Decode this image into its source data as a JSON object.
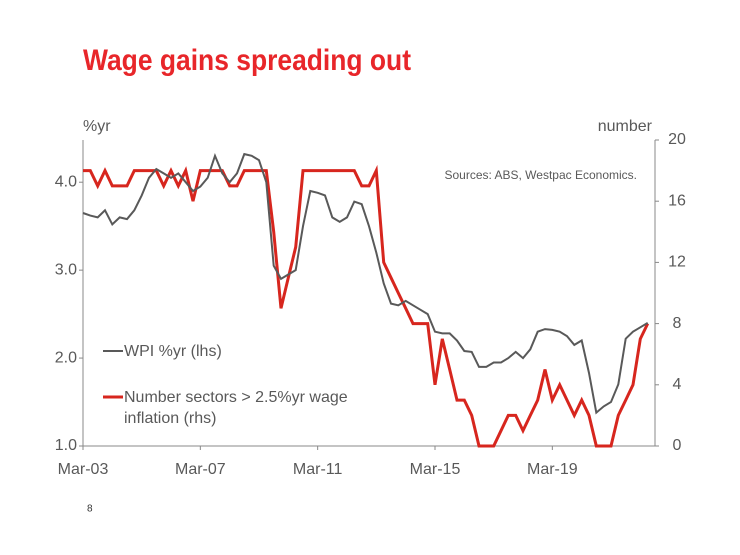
{
  "chart_data": {
    "type": "line",
    "title": "Wage gains spreading out",
    "y_label": "%yr",
    "y2_label": "number",
    "annotation": "Sources: ABS, Westpac Economics.",
    "page_number": "8",
    "categories": [
      "Mar-03",
      null,
      null,
      null,
      null,
      null,
      null,
      null,
      null,
      null,
      null,
      null,
      null,
      null,
      null,
      null,
      "Mar-07",
      null,
      null,
      null,
      null,
      null,
      null,
      null,
      null,
      null,
      null,
      null,
      null,
      null,
      null,
      null,
      "Mar-11",
      null,
      null,
      null,
      null,
      null,
      null,
      null,
      null,
      null,
      null,
      null,
      null,
      null,
      null,
      null,
      "Mar-15",
      null,
      null,
      null,
      null,
      null,
      null,
      null,
      null,
      null,
      null,
      null,
      null,
      null,
      null,
      null,
      "Mar-19",
      null,
      null,
      null,
      null,
      null,
      null,
      null,
      null,
      null,
      null,
      null,
      null,
      null
    ],
    "series": [
      {
        "name": "WPI %yr (lhs)",
        "color": "#595959",
        "values": [
          3.65,
          3.62,
          3.6,
          3.68,
          3.52,
          3.6,
          3.58,
          3.68,
          3.85,
          4.05,
          4.15,
          4.1,
          4.05,
          4.1,
          4.0,
          3.9,
          3.95,
          4.05,
          4.3,
          4.1,
          4.0,
          4.1,
          4.32,
          4.3,
          4.25,
          4.0,
          3.05,
          2.9,
          2.95,
          3.0,
          3.5,
          3.9,
          3.88,
          3.85,
          3.6,
          3.55,
          3.6,
          3.78,
          3.75,
          3.5,
          3.2,
          2.85,
          2.62,
          2.6,
          2.65,
          2.6,
          2.55,
          2.5,
          2.3,
          2.28,
          2.28,
          2.2,
          2.08,
          2.07,
          1.9,
          1.9,
          1.95,
          1.95,
          2.0,
          2.07,
          2.0,
          2.1,
          2.3,
          2.33,
          2.32,
          2.3,
          2.25,
          2.15,
          2.2,
          1.83,
          1.38,
          1.45,
          1.5,
          1.7,
          2.22,
          2.3,
          2.35,
          2.4
        ]
      },
      {
        "name": "Number sectors > 2.5%yr wage inflation (rhs)",
        "color": "#d7261e",
        "axis": "y2",
        "values": [
          18,
          18,
          17,
          18,
          17,
          17,
          17,
          18,
          18,
          18,
          18,
          17,
          18,
          17,
          18,
          16,
          18,
          18,
          18,
          18,
          17,
          17,
          18,
          18,
          18,
          18,
          14,
          9,
          11,
          13,
          18,
          18,
          18,
          18,
          18,
          18,
          18,
          18,
          17,
          17,
          18,
          12,
          11,
          10,
          9,
          8,
          8,
          8,
          4,
          7,
          5,
          3,
          3,
          2,
          0,
          0,
          0,
          1,
          2,
          2,
          1,
          2,
          3,
          5,
          3,
          4,
          3,
          2,
          3,
          2,
          0,
          0,
          0,
          2,
          3,
          4,
          7,
          8
        ]
      }
    ],
    "ylim": [
      1.0,
      4.48
    ],
    "yticks": [
      {
        "value": 1,
        "label": "1.0"
      },
      {
        "value": 2,
        "label": "2.0"
      },
      {
        "value": 3,
        "label": "3.0"
      },
      {
        "value": 4,
        "label": "4.0"
      }
    ],
    "y2lim": [
      0,
      20
    ],
    "y2ticks": [
      0,
      4,
      8,
      12,
      16,
      20
    ],
    "grid": false
  }
}
